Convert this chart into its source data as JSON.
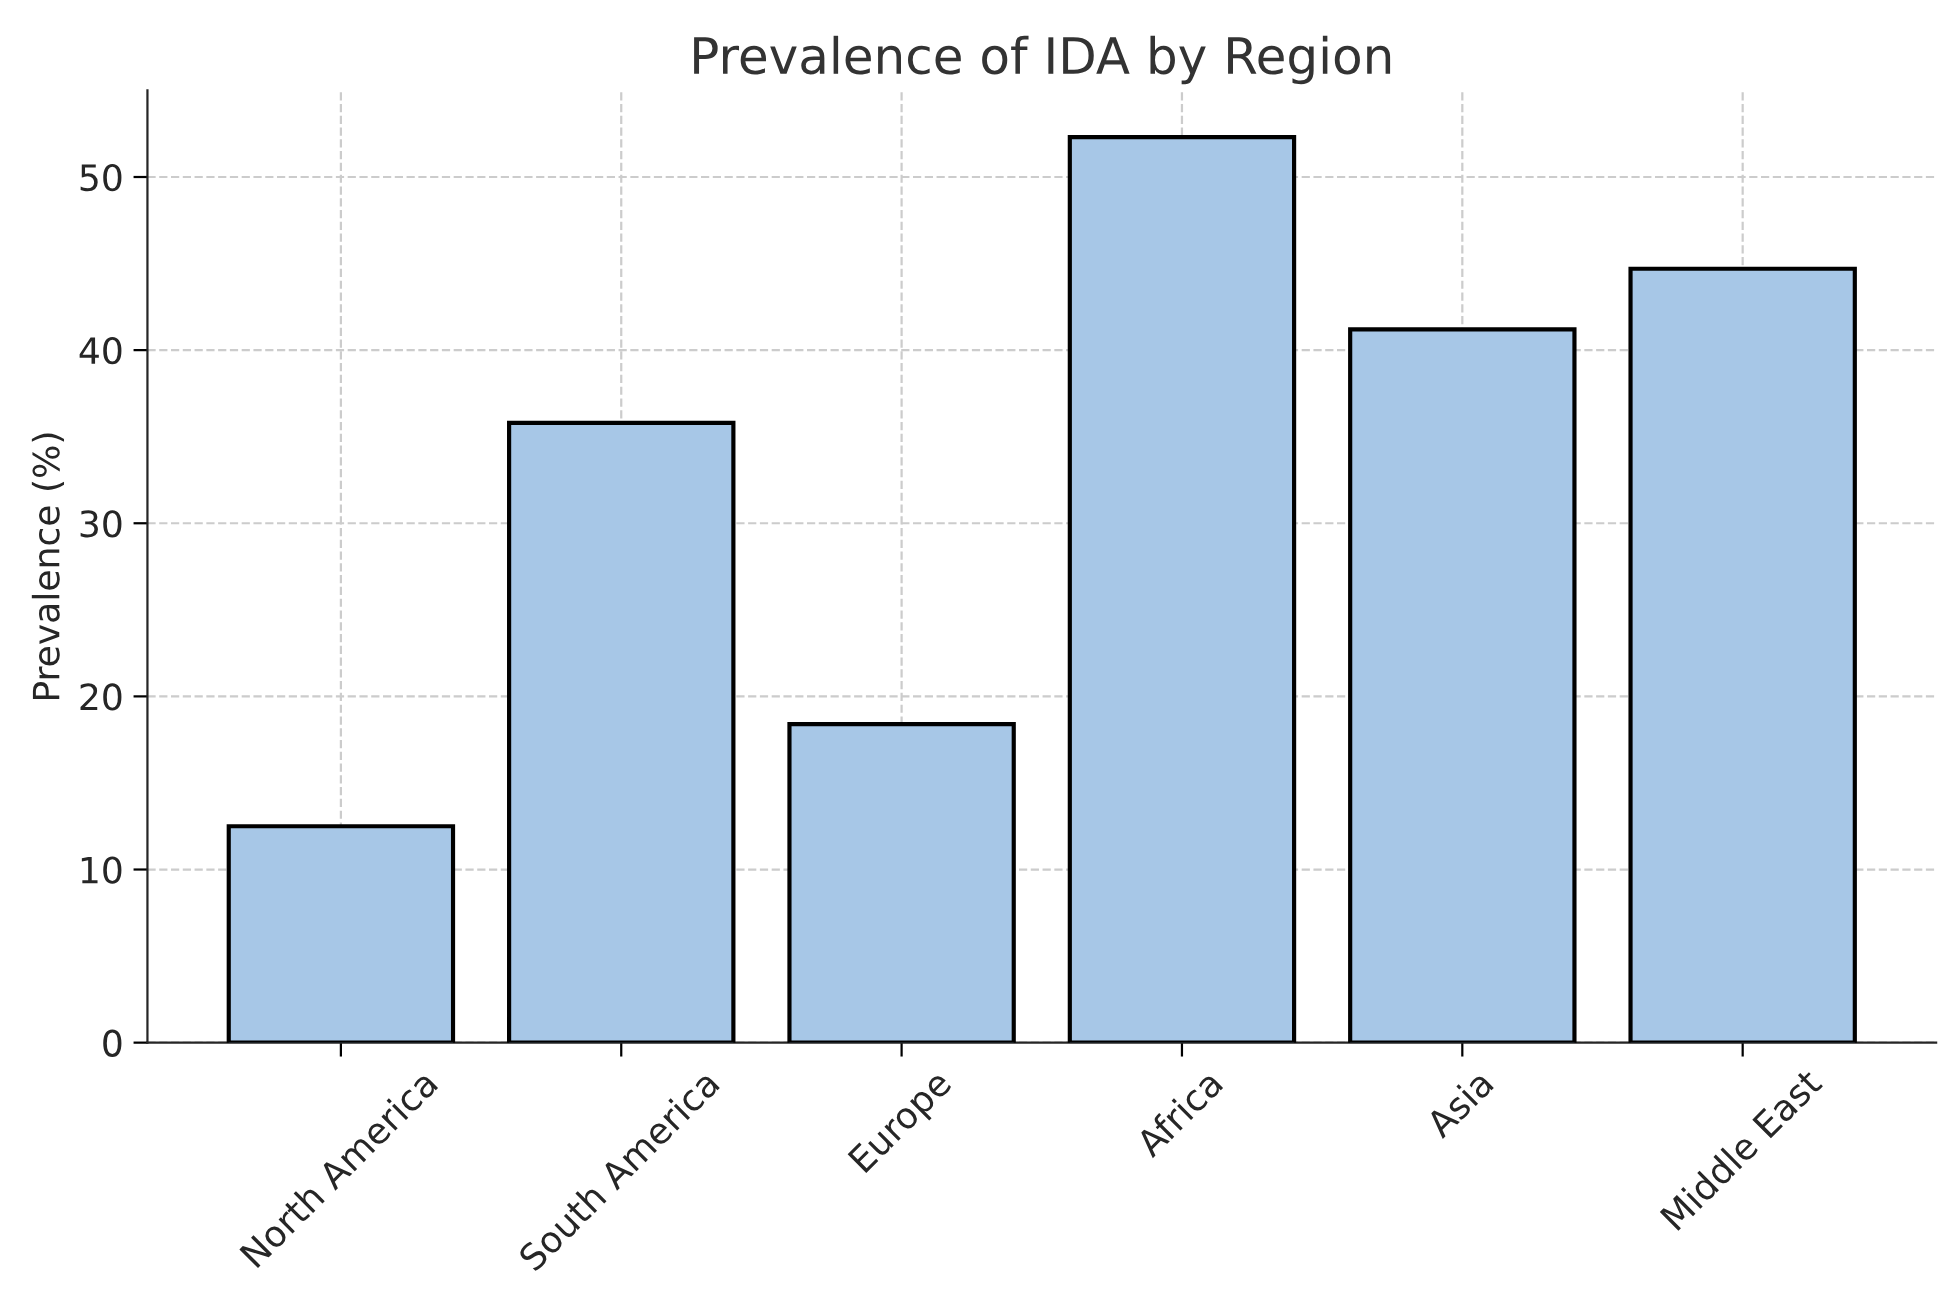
{
  "chart_data": {
    "type": "bar",
    "title": "Prevalence of IDA by Region",
    "ylabel": "Prevalence (%)",
    "categories": [
      "North America",
      "South America",
      "Europe",
      "Africa",
      "Asia",
      "Middle East"
    ],
    "values": [
      12.5,
      35.8,
      18.4,
      52.3,
      41.2,
      44.7
    ],
    "color": "#a7c7e7",
    "ylim": [
      0,
      55
    ],
    "yticks": [
      0,
      10,
      20,
      30,
      40,
      50
    ],
    "grid": true
  }
}
